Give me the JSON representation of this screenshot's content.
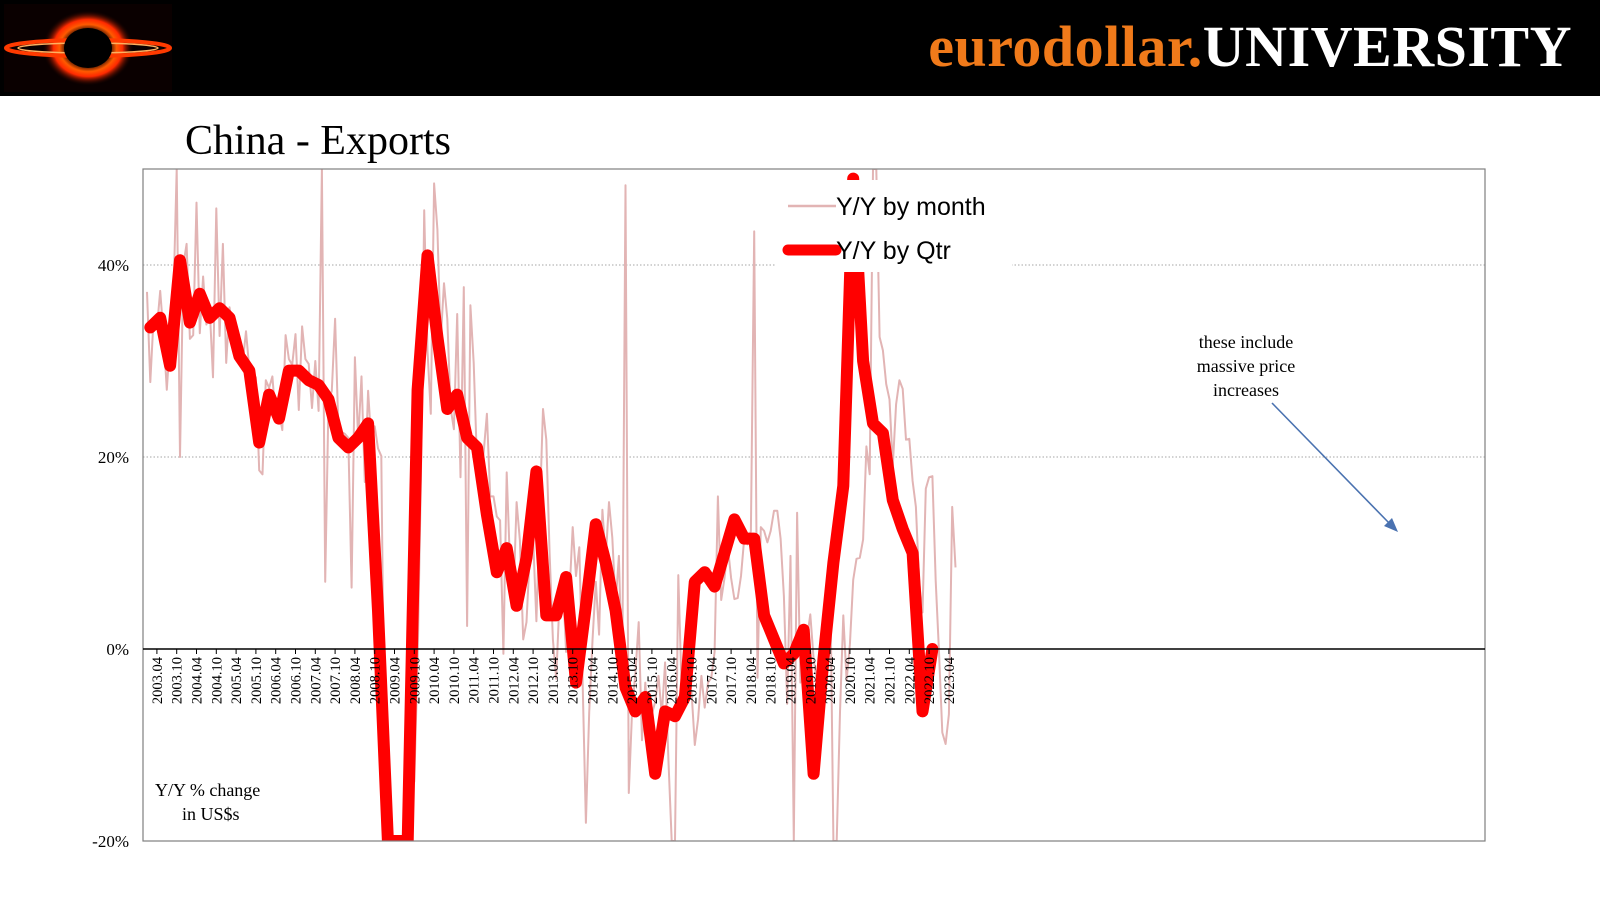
{
  "header": {
    "brand_part1": "eurodollar.",
    "brand_part2": "UNIVERSITY",
    "brand_orange": "#f07a1a",
    "logo": "eurodollar-ring-logo"
  },
  "chart_data": {
    "type": "line",
    "title": "China - Exports",
    "ylabel_note": [
      "Y/Y % change",
      "in US$s"
    ],
    "ylim": [
      -20,
      50
    ],
    "yticks": [
      -20,
      0,
      20,
      40
    ],
    "ytick_labels": [
      "-20%",
      "0%",
      "20%",
      "40%"
    ],
    "grid": "horizontal dotted",
    "legend_position": "top-center",
    "xtick_labels": [
      "2003.04",
      "2003.10",
      "2004.04",
      "2004.10",
      "2005.04",
      "2005.10",
      "2006.04",
      "2006.10",
      "2007.04",
      "2007.10",
      "2008.04",
      "2008.10",
      "2009.04",
      "2009.10",
      "2010.04",
      "2010.10",
      "2011.04",
      "2011.10",
      "2012.04",
      "2012.10",
      "2013.04",
      "2013.10",
      "2014.04",
      "2014.10",
      "2015.04",
      "2015.10",
      "2016.04",
      "2016.10",
      "2017.04",
      "2017.10",
      "2018.04",
      "2018.10",
      "2019.04",
      "2019.10",
      "2020.04",
      "2020.10",
      "2021.04",
      "2021.10",
      "2022.04",
      "2022.10",
      "2023.04"
    ],
    "annotation": {
      "lines": [
        "these include",
        "massive price",
        "increases"
      ],
      "color": "#4a72b0"
    },
    "series": [
      {
        "name": "Y/Y by month",
        "color": "#e2b4b4",
        "start": "2003.01",
        "freq": "month",
        "values": [
          37.2,
          27.8,
          34.5,
          33.4,
          37.3,
          32.8,
          27.0,
          32.2,
          36.4,
          50.0,
          20.0,
          40.0,
          42.2,
          32.3,
          32.7,
          46.5,
          32.9,
          38.8,
          33.8,
          35.5,
          28.3,
          45.9,
          32.6,
          42.2,
          29.8,
          35.6,
          33.3,
          30.9,
          31.4,
          29.8,
          33.1,
          29.2,
          25.6,
          28.3,
          18.6,
          18.2,
          28.0,
          27.2,
          28.4,
          23.9,
          24.8,
          22.8,
          32.7,
          30.2,
          29.6,
          32.8,
          24.9,
          33.6,
          30.2,
          29.7,
          25.1,
          30.0,
          24.8,
          50.0,
          7.0,
          25.7,
          26.9,
          34.4,
          22.9,
          22.6,
          22.4,
          22.0,
          6.4,
          30.4,
          21.8,
          28.4,
          17.4,
          26.9,
          21.4,
          23.2,
          20.9,
          20.1,
          -12.0,
          -20.0,
          -20.0,
          -20.0,
          -20.0,
          -20.0,
          -20.0,
          -20.0,
          -15.0,
          -13.8,
          -1.2,
          17.7,
          45.7,
          31.1,
          24.5,
          48.5,
          43.7,
          32.2,
          38.1,
          34.4,
          25.1,
          22.9,
          34.9,
          17.9,
          37.7,
          2.4,
          35.8,
          29.8,
          19.4,
          17.9,
          20.4,
          24.5,
          15.9,
          15.9,
          13.8,
          13.4,
          -0.5,
          18.4,
          8.9,
          4.9,
          15.3,
          11.3,
          1.0,
          2.8,
          9.9,
          11.6,
          2.9,
          14.1,
          25.0,
          21.8,
          10.0,
          1.0,
          -3.1,
          5.1,
          7.2,
          -0.3,
          5.6,
          12.7,
          7.6,
          10.6,
          -3.3,
          -18.1,
          -6.6,
          0.9,
          7.0,
          1.5,
          14.5,
          9.4,
          15.3,
          11.6,
          4.7,
          9.7,
          -3.3,
          48.3,
          -15.0,
          -6.4,
          -2.5,
          2.8,
          -9.5,
          -3.5,
          -9.0,
          -6.8,
          -5.5,
          -2.8,
          -6.9,
          -1.4,
          -11.5,
          -20.0,
          -25.0,
          7.7,
          -4.1,
          -1.2,
          -4.8,
          -4.4,
          -10.0,
          -7.3,
          -2.8,
          -6.1,
          -3.5,
          -3.0,
          -0.3,
          15.9,
          5.1,
          7.4,
          10.7,
          7.4,
          5.2,
          5.3,
          7.6,
          11.6,
          10.9,
          12.3,
          43.5,
          -3.0,
          12.7,
          12.3,
          11.1,
          12.3,
          14.4,
          14.4,
          11.5,
          5.5,
          -5.7,
          9.7,
          -20.9,
          14.2,
          -3.5,
          -1.1,
          1.1,
          3.6,
          -1.0,
          -3.3,
          -1.1,
          -3.3,
          -1.5,
          8.6,
          -20.0,
          -20.0,
          -6.6,
          3.5,
          -3.3,
          0.5,
          7.2,
          9.4,
          9.5,
          11.4,
          21.1,
          18.2,
          50.0,
          50.0,
          32.5,
          31.1,
          27.6,
          26.0,
          19.1,
          25.5,
          28.0,
          27.1,
          21.8,
          21.9,
          17.5,
          14.8,
          6.9,
          3.8,
          16.7,
          17.9,
          18.0,
          7.1,
          -0.3,
          -8.7,
          -9.9,
          -6.8,
          14.8,
          8.5
        ]
      },
      {
        "name": "Y/Y by Qtr",
        "color": "#ff0000",
        "start": "2003.Q1",
        "freq": "quarter",
        "values": [
          33.5,
          34.5,
          29.5,
          40.5,
          34.0,
          37.0,
          34.5,
          35.5,
          34.5,
          30.5,
          29.0,
          21.5,
          26.5,
          24.0,
          29.0,
          29.0,
          28.0,
          27.5,
          26.0,
          22.0,
          21.0,
          22.0,
          23.5,
          4.0,
          -20.0,
          -22.0,
          -20.0,
          27.0,
          41.0,
          32.5,
          25.0,
          26.5,
          22.0,
          21.0,
          14.0,
          8.0,
          10.5,
          4.5,
          9.5,
          18.5,
          3.5,
          3.5,
          7.5,
          -3.5,
          4.5,
          13.0,
          9.0,
          4.0,
          -4.0,
          -6.5,
          -5.0,
          -13.0,
          -6.5,
          -7.0,
          -5.0,
          7.0,
          8.0,
          6.5,
          10.0,
          13.5,
          11.5,
          11.5,
          3.5,
          1.0,
          -1.5,
          -0.5,
          2.0,
          -13.0,
          -1.0,
          9.0,
          17.0,
          49.0,
          30.0,
          23.5,
          22.5,
          15.5,
          12.5,
          10.0,
          -6.5,
          0.0
        ]
      }
    ]
  }
}
